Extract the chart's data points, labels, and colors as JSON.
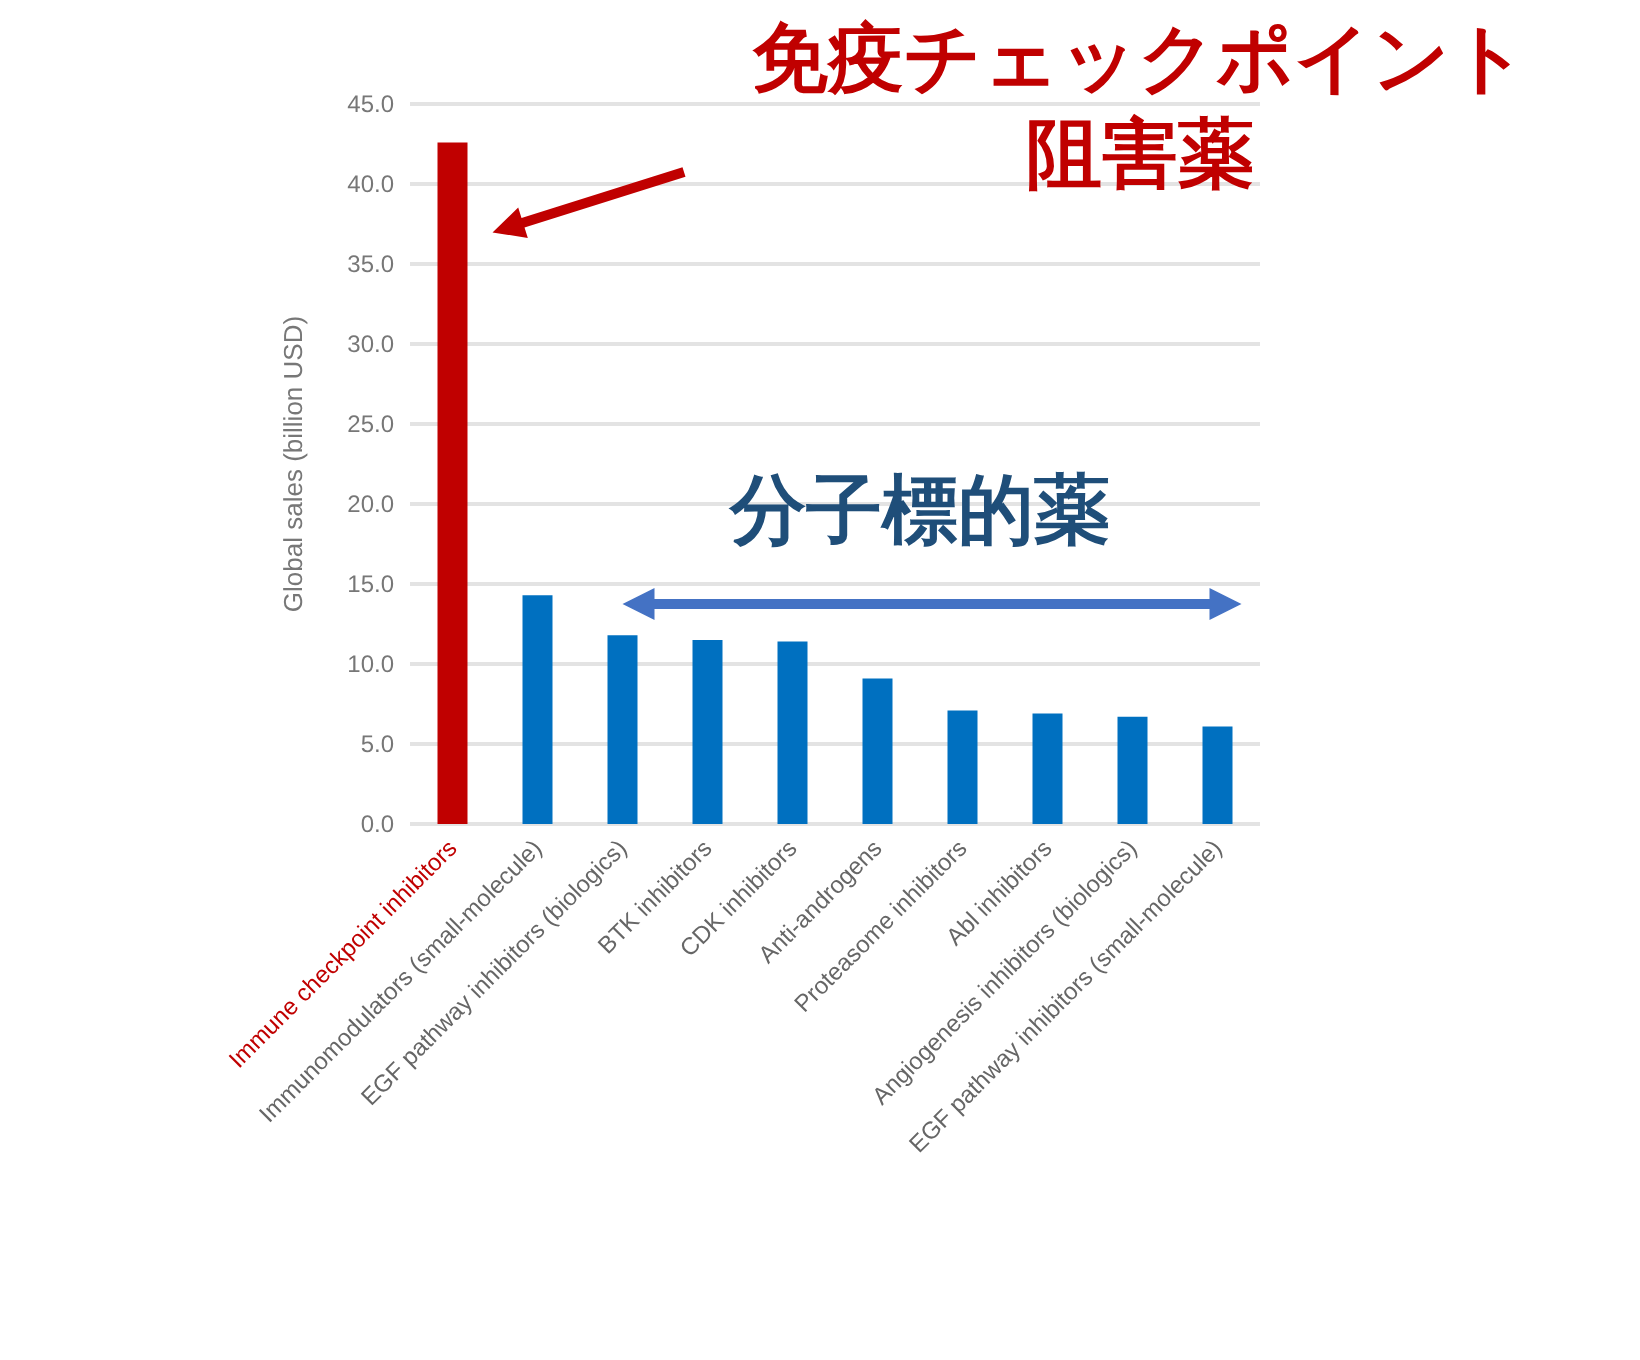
{
  "chart_data": {
    "type": "bar",
    "ylabel": "Global sales (billion USD)",
    "categories": [
      "Immune checkpoint inhibitors",
      "Immunomodulators (small-molecule)",
      "EGF pathway inhibitors (biologics)",
      "BTK inhibitors",
      "CDK inhibitors",
      "Anti-androgens",
      "Proteasome inhibitors",
      "Abl inhibitors",
      "Angiogenesis inhibitors (biologics)",
      "EGF pathway inhibitors (small-molecule)"
    ],
    "values": [
      42.6,
      14.3,
      11.8,
      11.5,
      11.4,
      9.1,
      7.1,
      6.9,
      6.7,
      6.1
    ],
    "colors": [
      "#c00000",
      "#0070c0",
      "#0070c0",
      "#0070c0",
      "#0070c0",
      "#0070c0",
      "#0070c0",
      "#0070c0",
      "#0070c0",
      "#0070c0"
    ],
    "ylim": [
      0,
      45
    ],
    "yticks": [
      {
        "value": 0,
        "label": "0.0"
      },
      {
        "value": 5,
        "label": "5.0"
      },
      {
        "value": 10,
        "label": "10.0"
      },
      {
        "value": 15,
        "label": "15.0"
      },
      {
        "value": 20,
        "label": "20.0"
      },
      {
        "value": 25,
        "label": "25.0"
      },
      {
        "value": 30,
        "label": "30.0"
      },
      {
        "value": 35,
        "label": "35.0"
      },
      {
        "value": 40,
        "label": "40.0"
      },
      {
        "value": 45,
        "label": "45.0"
      }
    ],
    "grid": "y",
    "annotations": [
      "免疫チェックポイント阻害薬",
      "分子標的薬"
    ]
  }
}
